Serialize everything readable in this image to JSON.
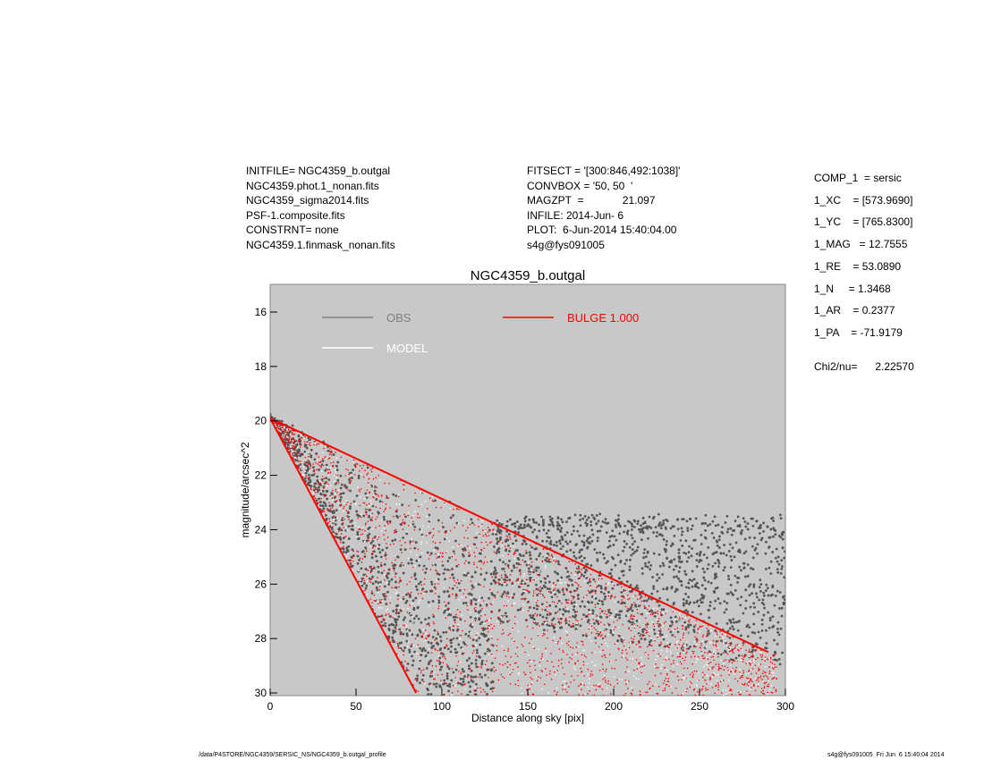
{
  "header_left": [
    "INITFILE= NGC4359_b.outgal",
    "NGC4359.phot.1_nonan.fits",
    "NGC4359_sigma2014.fits",
    "PSF-1.composite.fits",
    "CONSTRNT= none",
    "NGC4359.1.finmask_nonan.fits"
  ],
  "header_mid": [
    "FITSECT = '[300:846,492:1038]'",
    "CONVBOX = '50, 50  '",
    "MAGZPT  =             21.097",
    "INFILE: 2014-Jun- 6",
    "PLOT:  6-Jun-2014 15:40:04.00",
    "s4g@fys091005"
  ],
  "params": [
    "COMP_1  = sersic",
    "1_XC    = [573.9690]",
    "1_YC    = [765.8300]",
    "1_MAG   = 12.7555",
    "1_RE    = 53.0890",
    "1_N     = 1.3468",
    "1_AR    = 0.2377",
    "1_PA    = -71.9179"
  ],
  "chi2": "Chi2/nu=      2.22570",
  "footer_left": "/data/P4STORE/NGC4359/SERSIC_NS/NGC4359_b.outgal_profile",
  "footer_right": "s4g@fys091005  Fri Jun  6 15:40:04 2014",
  "chart_data": {
    "type": "scatter",
    "title": "NGC4359_b.outgal",
    "xlabel": "Distance along sky [pix]",
    "ylabel": "magnitude/arcsec^2",
    "xlim": [
      0,
      300
    ],
    "ylim": [
      30.1,
      15
    ],
    "y_inverted": true,
    "xticks": [
      "0",
      "50",
      "100",
      "150",
      "200",
      "250",
      "300"
    ],
    "yticks": [
      "16",
      "18",
      "20",
      "22",
      "24",
      "26",
      "28",
      "30"
    ],
    "background": "#c8c8c8",
    "legend": [
      {
        "name": "OBS",
        "color": "#808080"
      },
      {
        "name": "MODEL",
        "color": "#ffffff"
      },
      {
        "name": "BULGE  1.000",
        "color": "#ff0000"
      }
    ],
    "model_envelope": {
      "upper_edge": [
        [
          0,
          19.9
        ],
        [
          290,
          28.5
        ]
      ],
      "lower_edge": [
        [
          0,
          19.9
        ],
        [
          85,
          30
        ]
      ]
    },
    "obs_envelope": {
      "upper_edge": [
        [
          0,
          19.9
        ],
        [
          140,
          24.0
        ],
        [
          220,
          23.5
        ],
        [
          290,
          23.5
        ]
      ],
      "lower_edge": [
        [
          0,
          19.9
        ],
        [
          85,
          30
        ]
      ]
    }
  }
}
